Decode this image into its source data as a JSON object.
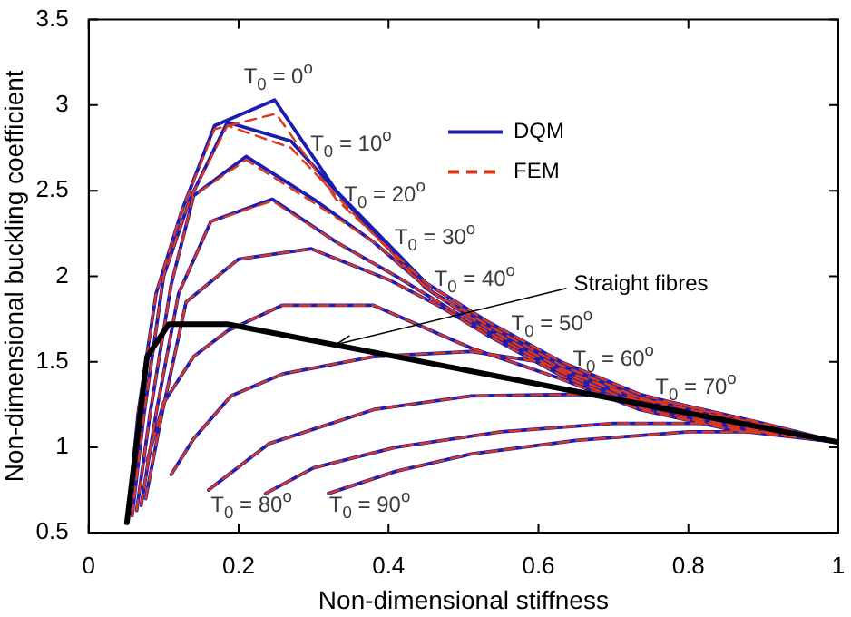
{
  "chart_data": {
    "type": "line",
    "xlabel": "Non-dimensional stiffness",
    "ylabel": "Non-dimensional buckling coefficient",
    "xlim": [
      0,
      1
    ],
    "ylim": [
      0.5,
      3.5
    ],
    "xticks": [
      0,
      0.2,
      0.4,
      0.6,
      0.8,
      1
    ],
    "yticks": [
      0.5,
      1,
      1.5,
      2,
      2.5,
      3,
      3.5
    ],
    "legend": "top right",
    "marker": "none",
    "grid": false,
    "series": [
      {
        "name": "DQM",
        "color": "#1c1cb0",
        "line_style": "solid",
        "x": [
          0.052,
          0.066,
          0.09,
          0.124,
          0.168,
          0.248,
          0.33,
          0.45,
          0.53,
          0.63,
          0.735,
          0.86,
          1
        ],
        "values": [
          0.57,
          1.2,
          1.9,
          2.38,
          2.88,
          3.03,
          2.5,
          1.96,
          1.74,
          1.5,
          1.31,
          1.17,
          1.03
        ]
      },
      {
        "color": "#1c1cb0",
        "line_style": "solid",
        "x": [
          0.058,
          0.074,
          0.1,
          0.135,
          0.185,
          0.27,
          0.35,
          0.45,
          0.53,
          0.63,
          0.735,
          0.86,
          1
        ],
        "values": [
          0.6,
          1.2,
          2.0,
          2.45,
          2.9,
          2.79,
          2.4,
          1.93,
          1.72,
          1.48,
          1.29,
          1.16,
          1.03
        ]
      },
      {
        "color": "#1c1cb0",
        "line_style": "solid",
        "x": [
          0.064,
          0.082,
          0.11,
          0.14,
          0.21,
          0.3,
          0.38,
          0.46,
          0.53,
          0.63,
          0.735,
          0.86,
          1
        ],
        "values": [
          0.63,
          1.2,
          1.95,
          2.47,
          2.7,
          2.45,
          2.2,
          1.9,
          1.7,
          1.46,
          1.27,
          1.14,
          1.03
        ]
      },
      {
        "color": "#1c1cb0",
        "line_style": "solid",
        "x": [
          0.07,
          0.09,
          0.12,
          0.163,
          0.245,
          0.33,
          0.41,
          0.47,
          0.53,
          0.63,
          0.735,
          0.86,
          1
        ],
        "values": [
          0.66,
          1.2,
          1.9,
          2.32,
          2.45,
          2.2,
          2.0,
          1.84,
          1.68,
          1.44,
          1.25,
          1.12,
          1.03
        ]
      },
      {
        "color": "#1c1cb0",
        "line_style": "solid",
        "x": [
          0.076,
          0.098,
          0.13,
          0.2,
          0.297,
          0.4,
          0.47,
          0.53,
          0.63,
          0.735,
          0.86,
          1
        ],
        "values": [
          0.7,
          1.2,
          1.85,
          2.1,
          2.16,
          1.98,
          1.82,
          1.66,
          1.42,
          1.23,
          1.11,
          1.03
        ]
      },
      {
        "color": "#1c1cb0",
        "line_style": "solid",
        "x": [
          0.078,
          0.1,
          0.14,
          0.185,
          0.258,
          0.38,
          0.51,
          0.63,
          0.735,
          0.86,
          1
        ],
        "values": [
          0.92,
          1.26,
          1.53,
          1.68,
          1.83,
          1.83,
          1.58,
          1.4,
          1.22,
          1.1,
          1.03
        ]
      },
      {
        "color": "#1c1cb0",
        "line_style": "solid",
        "x": [
          0.11,
          0.14,
          0.19,
          0.26,
          0.38,
          0.51,
          0.6,
          0.7,
          0.8,
          0.9,
          1
        ],
        "values": [
          0.84,
          1.05,
          1.3,
          1.43,
          1.53,
          1.56,
          1.5,
          1.34,
          1.2,
          1.1,
          1.03
        ]
      },
      {
        "color": "#1c1cb0",
        "line_style": "solid",
        "x": [
          0.16,
          0.24,
          0.38,
          0.51,
          0.655,
          0.78,
          0.9,
          1
        ],
        "values": [
          0.75,
          1.02,
          1.22,
          1.3,
          1.31,
          1.26,
          1.14,
          1.03
        ]
      },
      {
        "color": "#1c1cb0",
        "line_style": "solid",
        "x": [
          0.236,
          0.3,
          0.41,
          0.55,
          0.7,
          0.85,
          1
        ],
        "values": [
          0.73,
          0.88,
          1.0,
          1.09,
          1.14,
          1.14,
          1.03
        ]
      },
      {
        "color": "#1c1cb0",
        "line_style": "solid",
        "x": [
          0.32,
          0.41,
          0.51,
          0.65,
          0.8,
          0.92,
          1
        ],
        "values": [
          0.73,
          0.86,
          0.96,
          1.04,
          1.09,
          1.09,
          1.03
        ]
      },
      {
        "name": "FEM",
        "color": "#d9381e",
        "line_style": "dashed",
        "x": [
          0.052,
          0.066,
          0.09,
          0.124,
          0.168,
          0.25,
          0.33,
          0.45,
          0.53,
          0.63,
          0.735,
          0.86,
          1
        ],
        "values": [
          0.57,
          1.2,
          1.9,
          2.38,
          2.86,
          2.95,
          2.45,
          1.96,
          1.74,
          1.5,
          1.31,
          1.17,
          1.03
        ]
      },
      {
        "color": "#d9381e",
        "line_style": "dashed",
        "x": [
          0.058,
          0.074,
          0.1,
          0.135,
          0.185,
          0.27,
          0.35,
          0.45,
          0.53,
          0.63,
          0.735,
          0.86,
          1
        ],
        "values": [
          0.6,
          1.2,
          2.0,
          2.45,
          2.88,
          2.75,
          2.38,
          1.93,
          1.72,
          1.48,
          1.29,
          1.16,
          1.03
        ]
      },
      {
        "color": "#d9381e",
        "line_style": "dashed",
        "x": [
          0.064,
          0.082,
          0.11,
          0.14,
          0.21,
          0.3,
          0.38,
          0.46,
          0.53,
          0.63,
          0.735,
          0.86,
          1
        ],
        "values": [
          0.63,
          1.2,
          1.95,
          2.47,
          2.68,
          2.43,
          2.2,
          1.9,
          1.7,
          1.46,
          1.27,
          1.14,
          1.03
        ]
      },
      {
        "color": "#d9381e",
        "line_style": "dashed",
        "x": [
          0.07,
          0.09,
          0.12,
          0.163,
          0.245,
          0.33,
          0.41,
          0.47,
          0.53,
          0.63,
          0.735,
          0.86,
          1
        ],
        "values": [
          0.66,
          1.2,
          1.9,
          2.32,
          2.44,
          2.2,
          2.0,
          1.84,
          1.68,
          1.44,
          1.25,
          1.12,
          1.03
        ]
      },
      {
        "color": "#d9381e",
        "line_style": "dashed",
        "x": [
          0.076,
          0.098,
          0.13,
          0.2,
          0.297,
          0.4,
          0.47,
          0.53,
          0.63,
          0.735,
          0.86,
          1
        ],
        "values": [
          0.7,
          1.2,
          1.85,
          2.1,
          2.16,
          1.98,
          1.82,
          1.66,
          1.42,
          1.23,
          1.11,
          1.03
        ]
      },
      {
        "color": "#d9381e",
        "line_style": "dashed",
        "x": [
          0.078,
          0.1,
          0.14,
          0.185,
          0.258,
          0.38,
          0.51,
          0.63,
          0.735,
          0.86,
          1
        ],
        "values": [
          0.92,
          1.26,
          1.53,
          1.68,
          1.83,
          1.83,
          1.58,
          1.4,
          1.22,
          1.1,
          1.03
        ]
      },
      {
        "color": "#d9381e",
        "line_style": "dashed",
        "x": [
          0.11,
          0.14,
          0.19,
          0.26,
          0.38,
          0.51,
          0.6,
          0.7,
          0.8,
          0.9,
          1
        ],
        "values": [
          0.84,
          1.05,
          1.3,
          1.43,
          1.53,
          1.56,
          1.5,
          1.34,
          1.2,
          1.1,
          1.03
        ]
      },
      {
        "color": "#d9381e",
        "line_style": "dashed",
        "x": [
          0.16,
          0.24,
          0.38,
          0.51,
          0.655,
          0.78,
          0.9,
          1
        ],
        "values": [
          0.75,
          1.02,
          1.22,
          1.3,
          1.31,
          1.26,
          1.14,
          1.03
        ]
      },
      {
        "color": "#d9381e",
        "line_style": "dashed",
        "x": [
          0.236,
          0.3,
          0.41,
          0.55,
          0.7,
          0.85,
          1
        ],
        "values": [
          0.73,
          0.88,
          1.0,
          1.09,
          1.14,
          1.14,
          1.03
        ]
      },
      {
        "color": "#d9381e",
        "line_style": "dashed",
        "x": [
          0.32,
          0.41,
          0.51,
          0.65,
          0.8,
          0.92,
          1
        ],
        "values": [
          0.73,
          0.86,
          0.96,
          1.04,
          1.09,
          1.09,
          1.03
        ]
      },
      {
        "color": "#000000",
        "line_style": "solid",
        "x": [
          0.051,
          0.078,
          0.107,
          0.185,
          1
        ],
        "values": [
          0.56,
          1.53,
          1.72,
          1.72,
          1.03
        ]
      }
    ],
    "annotations": [
      "T$_{0}$ = 0$^{o}$",
      "T$_{0}$ = 10$^{o}$",
      "T$_{0}$ = 20$^{o}$",
      "T$_{0}$ = 30$^{o}$",
      "T$_{0}$ = 40$^{o}$",
      "T$_{0}$ = 50$^{o}$",
      "T$_{0}$ = 60$^{o}$",
      "T$_{0}$ = 70$^{o}$",
      "T$_{0}$ = 80$^{o}$",
      "T$_{0}$ = 90$^{o}$",
      {
        "text": "Straight fibres",
        "x": 0.33,
        "y": 1.6
      }
    ]
  }
}
